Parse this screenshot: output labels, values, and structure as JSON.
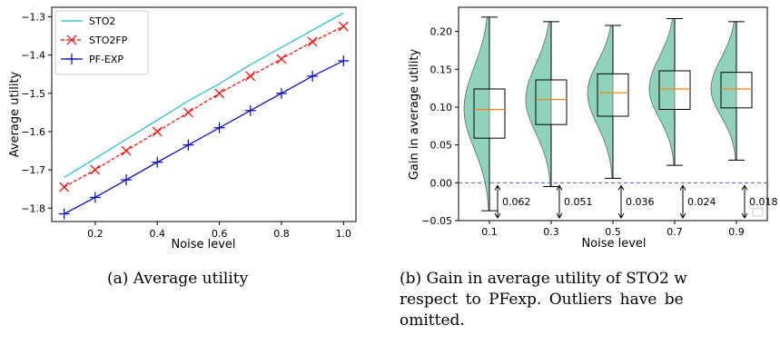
{
  "captions": {
    "a": "(a) Average utility",
    "b_line1": "(b) Gain in average utility of STO2 w",
    "b_line2": "respect to PFexp.  Outliers have be",
    "b_line3": "omitted."
  },
  "chart_data": [
    {
      "type": "line",
      "xlabel": "Noise level",
      "ylabel": "Average utility",
      "xlim": [
        0.06,
        1.04
      ],
      "ylim": [
        -1.835,
        -1.275
      ],
      "xticks": [
        0.2,
        0.4,
        0.6,
        0.8,
        1.0
      ],
      "xtick_labels": [
        "0.2",
        "0.4",
        "0.6",
        "0.8",
        "1.0"
      ],
      "yticks": [
        -1.8,
        -1.7,
        -1.6,
        -1.5,
        -1.4,
        -1.3
      ],
      "ytick_labels": [
        "−1.8",
        "−1.7",
        "−1.6",
        "−1.5",
        "−1.4",
        "−1.3"
      ],
      "legend_position": "top-left",
      "grid": false,
      "x": [
        0.1,
        0.2,
        0.3,
        0.4,
        0.5,
        0.6,
        0.7,
        0.8,
        0.9,
        1.0
      ],
      "series": [
        {
          "name": "STO2",
          "color": "#17becf",
          "linestyle": "solid",
          "marker": "none",
          "values": [
            -1.72,
            -1.67,
            -1.62,
            -1.57,
            -1.52,
            -1.475,
            -1.425,
            -1.38,
            -1.335,
            -1.29
          ]
        },
        {
          "name": "STO2FP",
          "color": "#ff0000",
          "linestyle": "dashed",
          "marker": "x",
          "values": [
            -1.745,
            -1.7,
            -1.65,
            -1.6,
            -1.55,
            -1.5,
            -1.455,
            -1.41,
            -1.365,
            -1.325
          ]
        },
        {
          "name": "PF-EXP",
          "color": "#0000cc",
          "linestyle": "solid",
          "marker": "plus",
          "values": [
            -1.815,
            -1.772,
            -1.726,
            -1.68,
            -1.635,
            -1.59,
            -1.545,
            -1.5,
            -1.455,
            -1.415
          ]
        }
      ]
    },
    {
      "type": "box",
      "xlabel": "Noise level",
      "ylabel": "Gain in average utility",
      "xlim": [
        0,
        1
      ],
      "ylim": [
        -0.05,
        0.232
      ],
      "yticks": [
        -0.05,
        0.0,
        0.05,
        0.1,
        0.15,
        0.2
      ],
      "ytick_labels": [
        "−0.05",
        "0.00",
        "0.05",
        "0.10",
        "0.15",
        "0.20"
      ],
      "categories": [
        "0.1",
        "0.3",
        "0.5",
        "0.7",
        "0.9"
      ],
      "zero_line": 0.0,
      "zero_line_color": "#5555ee",
      "violin_color": "#8fd3bf",
      "median_color": "#ff7f0e",
      "boxes": [
        {
          "whisker_low": -0.037,
          "q1": 0.059,
          "median": 0.097,
          "q3": 0.124,
          "whisker_high": 0.219
        },
        {
          "whisker_low": -0.005,
          "q1": 0.077,
          "median": 0.11,
          "q3": 0.136,
          "whisker_high": 0.213
        },
        {
          "whisker_low": 0.006,
          "q1": 0.088,
          "median": 0.119,
          "q3": 0.144,
          "whisker_high": 0.208
        },
        {
          "whisker_low": 0.023,
          "q1": 0.097,
          "median": 0.124,
          "q3": 0.148,
          "whisker_high": 0.217
        },
        {
          "whisker_low": 0.03,
          "q1": 0.099,
          "median": 0.124,
          "q3": 0.146,
          "whisker_high": 0.213
        }
      ],
      "annotations": [
        {
          "category": "0.1",
          "value": 0.062,
          "label": "0.062"
        },
        {
          "category": "0.3",
          "value": 0.051,
          "label": "0.051"
        },
        {
          "category": "0.5",
          "value": 0.036,
          "label": "0.036"
        },
        {
          "category": "0.7",
          "value": 0.024,
          "label": "0.024"
        },
        {
          "category": "0.9",
          "value": 0.018,
          "label": "0.018"
        }
      ]
    }
  ]
}
